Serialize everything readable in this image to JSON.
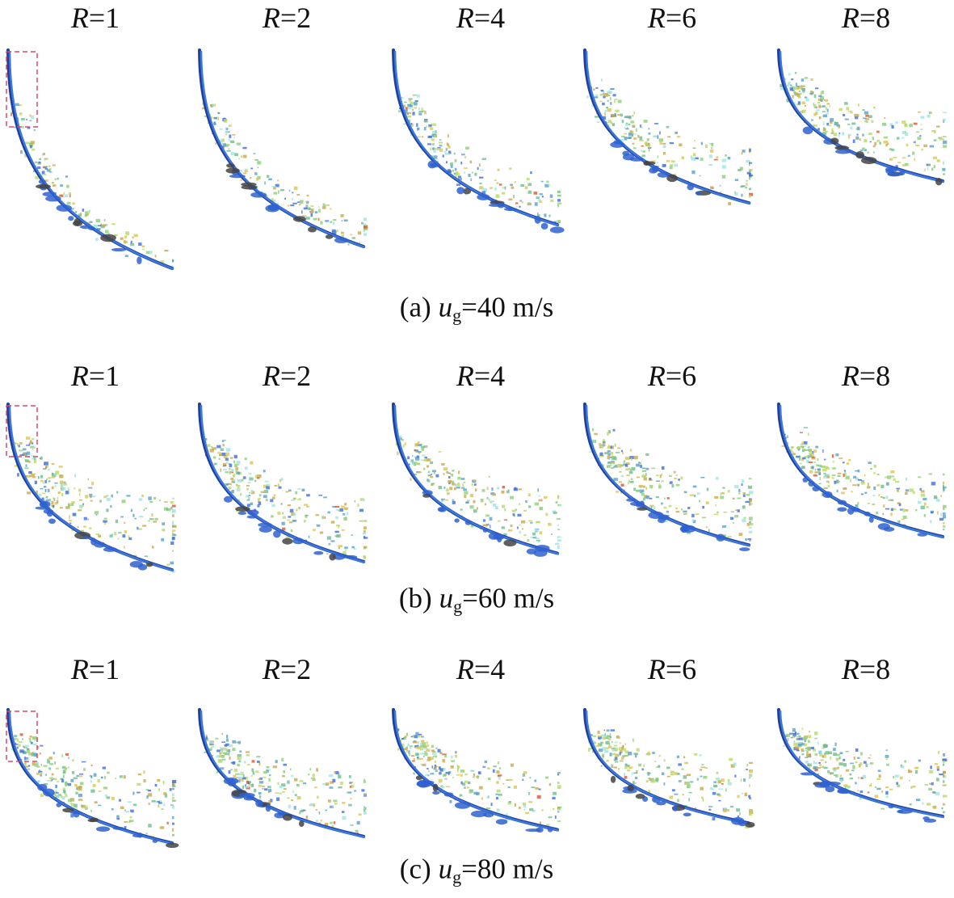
{
  "figure": {
    "panels": [
      {
        "labels": [
          {
            "var": "R",
            "rest": "=1"
          },
          {
            "var": "R",
            "rest": "=2"
          },
          {
            "var": "R",
            "rest": "=4"
          },
          {
            "var": "R",
            "rest": "=6"
          },
          {
            "var": "R",
            "rest": "=8"
          }
        ],
        "caption": {
          "prefix": "(a)",
          "var": "u",
          "sub": "g",
          "rest": "=40 m/s"
        }
      },
      {
        "labels": [
          {
            "var": "R",
            "rest": "=1"
          },
          {
            "var": "R",
            "rest": "=2"
          },
          {
            "var": "R",
            "rest": "=4"
          },
          {
            "var": "R",
            "rest": "=6"
          },
          {
            "var": "R",
            "rest": "=8"
          }
        ],
        "caption": {
          "prefix": "(b)",
          "var": "u",
          "sub": "g",
          "rest": "=60 m/s"
        }
      },
      {
        "labels": [
          {
            "var": "R",
            "rest": "=1"
          },
          {
            "var": "R",
            "rest": "=2"
          },
          {
            "var": "R",
            "rest": "=4"
          },
          {
            "var": "R",
            "rest": "=6"
          },
          {
            "var": "R",
            "rest": "=8"
          }
        ],
        "caption": {
          "prefix": "(c)",
          "var": "u",
          "sub": "g",
          "rest": "=80 m/s"
        }
      }
    ]
  }
}
